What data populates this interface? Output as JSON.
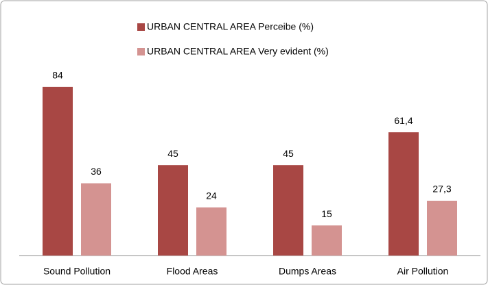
{
  "chart_data": {
    "type": "bar",
    "categories": [
      "Sound Pollution",
      "Flood Areas",
      "Dumps Areas",
      "Air Pollution"
    ],
    "series": [
      {
        "name": "URBAN CENTRAL  AREA Perceibe (%)",
        "color": "#a84744",
        "values": [
          84,
          45,
          45,
          61.4
        ],
        "value_labels": [
          "84",
          "45",
          "45",
          "61,4"
        ]
      },
      {
        "name": "URBAN CENTRAL  AREA Very evident (%)",
        "color": "#d49391",
        "values": [
          36,
          24,
          15,
          27.3
        ],
        "value_labels": [
          "36",
          "24",
          "15",
          "27,3"
        ]
      }
    ],
    "ylim": [
      0,
      100
    ]
  }
}
